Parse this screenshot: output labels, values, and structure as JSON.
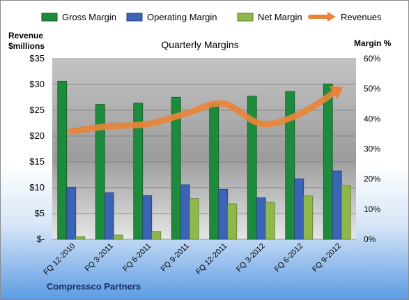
{
  "chart_data": {
    "type": "bar",
    "title": "Quarterly Margins",
    "categories": [
      "FQ 12-2010",
      "FQ 3-2011",
      "FQ 6-2011",
      "FQ 9-2011",
      "FQ 12-2011",
      "FQ 3-2012",
      "FQ 6-2012",
      "FQ 9-2012"
    ],
    "series": [
      {
        "name": "Gross Margin",
        "axis": "right",
        "color": "#1e8a3c",
        "values": [
          52.5,
          44.8,
          45.2,
          47.2,
          45.0,
          47.5,
          49.1,
          51.6
        ]
      },
      {
        "name": "Operating Margin",
        "axis": "right",
        "color": "#3b64b4",
        "values": [
          17.3,
          15.5,
          14.5,
          18.1,
          16.6,
          13.8,
          20.1,
          22.7
        ]
      },
      {
        "name": "Net Margin",
        "axis": "right",
        "color": "#8fb84c",
        "values": [
          0.9,
          1.4,
          2.6,
          13.5,
          11.8,
          12.3,
          14.4,
          17.8
        ]
      },
      {
        "name": "Revenues",
        "axis": "left",
        "type": "line",
        "color": "#e8843a",
        "values": [
          20.9,
          21.9,
          22.3,
          24.3,
          26.3,
          22.4,
          24.2,
          28.8
        ]
      }
    ],
    "left_axis": {
      "label_line1": "Revenue",
      "label_line2": "$millions",
      "min": 0,
      "max": 35,
      "step": 5,
      "tick_labels": [
        "$-",
        "$5",
        "$10",
        "$15",
        "$20",
        "$25",
        "$30",
        "$35"
      ]
    },
    "right_axis": {
      "label": "Margin %",
      "min": 0,
      "max": 60,
      "step": 10,
      "tick_labels": [
        "0%",
        "10%",
        "20%",
        "30%",
        "40%",
        "50%",
        "60%"
      ]
    },
    "legend": {
      "position": "top",
      "items": [
        "Gross Margin",
        "Operating Margin",
        "Net Margin",
        "Revenues"
      ]
    },
    "grid": true,
    "footer": "Compressco Partners"
  }
}
